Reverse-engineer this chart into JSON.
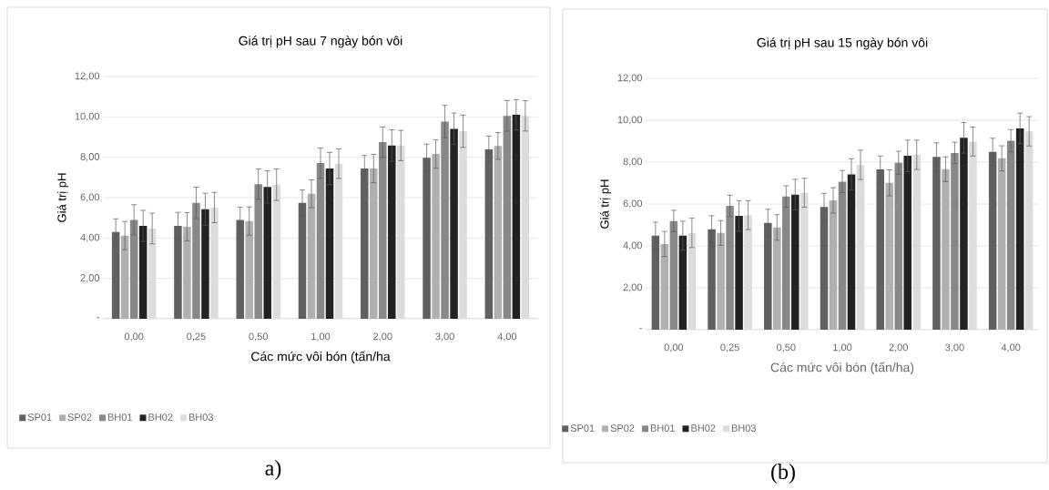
{
  "chart_data": [
    {
      "type": "bar",
      "title": "Giá trị pH sau 7 ngày bón vôi",
      "xlabel": "Các mức vôi bón (tấn/ha",
      "ylabel": "Giá trị pH",
      "categories": [
        "0,00",
        "0,25",
        "0,50",
        "1,00",
        "2,00",
        "3,00",
        "4,00"
      ],
      "series": [
        {
          "name": "SP01",
          "color": "#606060",
          "values": [
            4.3,
            4.6,
            4.89,
            5.74,
            7.44,
            7.97,
            8.39
          ],
          "errors": [
            0.65,
            0.67,
            0.64,
            0.64,
            0.65,
            0.68,
            0.66
          ]
        },
        {
          "name": "SP02",
          "color": "#b0b0b0",
          "values": [
            4.12,
            4.56,
            4.84,
            6.19,
            7.44,
            8.16,
            8.56
          ],
          "errors": [
            0.7,
            0.7,
            0.7,
            0.69,
            0.7,
            0.7,
            0.66
          ]
        },
        {
          "name": "BH01",
          "color": "#888888",
          "values": [
            4.9,
            5.74,
            6.67,
            7.71,
            8.75,
            9.77,
            10.05
          ],
          "errors": [
            0.75,
            0.78,
            0.75,
            0.75,
            0.75,
            0.8,
            0.76
          ]
        },
        {
          "name": "BH02",
          "color": "#222222",
          "values": [
            4.6,
            5.42,
            6.53,
            7.44,
            8.58,
            9.41,
            10.1
          ],
          "errors": [
            0.77,
            0.8,
            0.8,
            0.8,
            0.78,
            0.78,
            0.75
          ]
        },
        {
          "name": "BH03",
          "color": "#dcdcdc",
          "values": [
            4.47,
            5.51,
            6.64,
            7.68,
            8.58,
            9.29,
            10.05
          ],
          "errors": [
            0.76,
            0.75,
            0.78,
            0.73,
            0.75,
            0.8,
            0.75
          ]
        }
      ],
      "ylim": [
        0,
        12
      ],
      "yticks": [
        {
          "value": 0,
          "label": "-"
        },
        {
          "value": 2,
          "label": "2,00"
        },
        {
          "value": 4,
          "label": "4,00"
        },
        {
          "value": 6,
          "label": "6,00"
        },
        {
          "value": 8,
          "label": "8,00"
        },
        {
          "value": 10,
          "label": "10,00"
        },
        {
          "value": 12,
          "label": "12,00"
        }
      ],
      "grid": "y",
      "legend": "bottom",
      "annotations": [
        "a)"
      ]
    },
    {
      "type": "bar",
      "title": "Giá trị pH sau 15 ngày bón vôi",
      "xlabel": "Các mức vôi bón (tấn/ha)",
      "ylabel": "Giá trị pH",
      "categories": [
        "0,00",
        "0,25",
        "0,50",
        "1,00",
        "2,00",
        "3,00",
        "4,00"
      ],
      "series": [
        {
          "name": "SP01",
          "color": "#606060",
          "values": [
            4.49,
            4.79,
            5.1,
            5.86,
            7.65,
            8.25,
            8.49
          ],
          "errors": [
            0.64,
            0.65,
            0.65,
            0.65,
            0.64,
            0.67,
            0.65
          ]
        },
        {
          "name": "SP02",
          "color": "#b0b0b0",
          "values": [
            4.09,
            4.62,
            4.88,
            6.17,
            7.01,
            7.66,
            8.18
          ],
          "errors": [
            0.6,
            0.59,
            0.61,
            0.61,
            0.62,
            0.59,
            0.6
          ]
        },
        {
          "name": "BH01",
          "color": "#888888",
          "values": [
            5.19,
            5.91,
            6.36,
            7.07,
            7.97,
            8.44,
            9.02
          ],
          "errors": [
            0.51,
            0.51,
            0.51,
            0.53,
            0.55,
            0.51,
            0.53
          ]
        },
        {
          "name": "BH02",
          "color": "#222222",
          "values": [
            4.49,
            5.43,
            6.45,
            7.41,
            8.3,
            9.16,
            9.61
          ],
          "errors": [
            0.69,
            0.73,
            0.73,
            0.75,
            0.75,
            0.73,
            0.73
          ]
        },
        {
          "name": "BH03",
          "color": "#dcdcdc",
          "values": [
            4.62,
            5.47,
            6.54,
            7.87,
            8.35,
            8.98,
            9.47
          ],
          "errors": [
            0.7,
            0.69,
            0.69,
            0.7,
            0.7,
            0.69,
            0.7
          ]
        }
      ],
      "ylim": [
        0,
        12
      ],
      "yticks": [
        {
          "value": 0,
          "label": "-"
        },
        {
          "value": 2,
          "label": "2,00"
        },
        {
          "value": 4,
          "label": "4,00"
        },
        {
          "value": 6,
          "label": "6,00"
        },
        {
          "value": 8,
          "label": "8,00"
        },
        {
          "value": 10,
          "label": "10,00"
        },
        {
          "value": 12,
          "label": "12,00"
        }
      ],
      "grid": "y",
      "legend": "bottom",
      "annotations": [
        "(b)"
      ]
    }
  ]
}
